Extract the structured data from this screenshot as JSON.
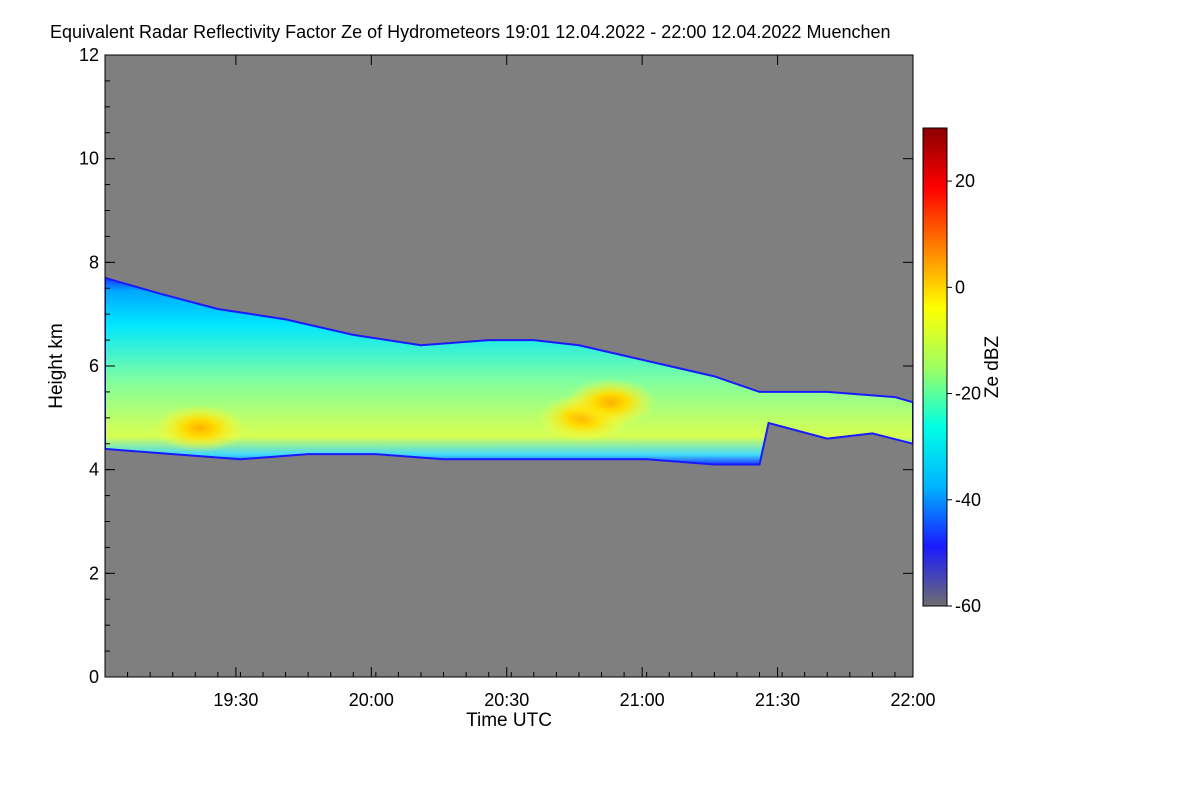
{
  "chart_data": {
    "type": "heatmap",
    "title": "Equivalent Radar Reflectivity Factor Ze of Hydrometeors   19:01 12.04.2022 - 22:00 12.04.2022 Muenchen",
    "xlabel": "Time UTC",
    "ylabel": "Height km",
    "x_range": [
      "19:01",
      "22:00"
    ],
    "x_ticks": [
      "19:30",
      "20:00",
      "20:30",
      "21:00",
      "21:30",
      "22:00"
    ],
    "x_tick_minutes": [
      29,
      59,
      89,
      119,
      149,
      179
    ],
    "ylim": [
      0,
      12
    ],
    "y_ticks": [
      0,
      2,
      4,
      6,
      8,
      10,
      12
    ],
    "colorbar": {
      "label": "Ze dBZ",
      "range": [
        -60,
        30
      ],
      "ticks": [
        -60,
        -40,
        -20,
        0,
        20
      ],
      "colors": [
        "#6e6e6e",
        "#1a1aff",
        "#00b4ff",
        "#00ffe6",
        "#a0ff60",
        "#ffff00",
        "#ff8000",
        "#ff0000",
        "#8b0000"
      ]
    },
    "background_color": "#7f7f7f",
    "cloud_layer": {
      "top_km": [
        [
          0,
          7.7
        ],
        [
          12,
          7.4
        ],
        [
          25,
          7.1
        ],
        [
          40,
          6.9
        ],
        [
          55,
          6.6
        ],
        [
          70,
          6.4
        ],
        [
          85,
          6.5
        ],
        [
          95,
          6.5
        ],
        [
          105,
          6.4
        ],
        [
          115,
          6.2
        ],
        [
          125,
          6.0
        ],
        [
          135,
          5.8
        ],
        [
          145,
          5.5
        ],
        [
          160,
          5.5
        ],
        [
          175,
          5.4
        ],
        [
          179,
          5.3
        ]
      ],
      "base_km": [
        [
          0,
          4.4
        ],
        [
          15,
          4.3
        ],
        [
          30,
          4.2
        ],
        [
          45,
          4.3
        ],
        [
          60,
          4.3
        ],
        [
          75,
          4.2
        ],
        [
          90,
          4.2
        ],
        [
          105,
          4.2
        ],
        [
          120,
          4.2
        ],
        [
          135,
          4.1
        ],
        [
          145,
          4.1
        ],
        [
          147,
          4.9
        ],
        [
          160,
          4.6
        ],
        [
          170,
          4.7
        ],
        [
          179,
          4.5
        ]
      ],
      "core_cells": [
        {
          "minute": 21,
          "height_km": 4.8,
          "ze_dbz": 2
        },
        {
          "minute": 106,
          "height_km": 5.0,
          "ze_dbz": 0
        },
        {
          "minute": 112,
          "height_km": 5.3,
          "ze_dbz": -4
        }
      ]
    }
  }
}
